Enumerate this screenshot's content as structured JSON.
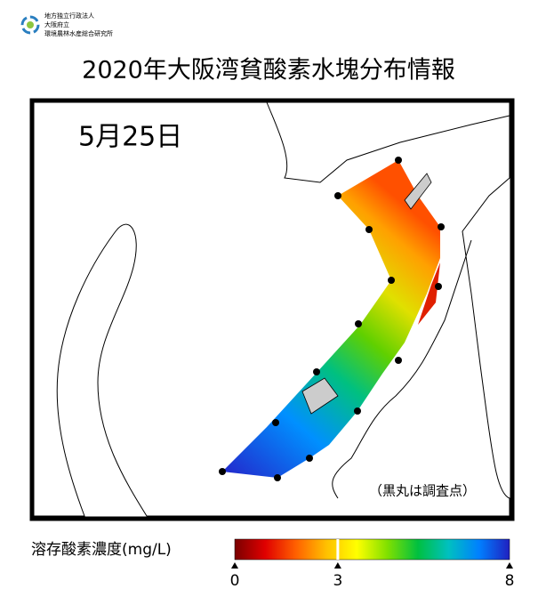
{
  "logo": {
    "lines": [
      "地方独立行政法人",
      "大阪府立",
      "環境農林水産総合研究所"
    ]
  },
  "title": "2020年大阪湾貧酸素水塊分布情報",
  "map": {
    "date": "5月25日",
    "note": "（黒丸は調査点）"
  },
  "colorbar": {
    "label": "溶存酸素濃度(mg/L)",
    "lim": [
      0,
      8
    ],
    "ticks": [
      0,
      3,
      8
    ],
    "colors": [
      "#7a0000",
      "#e00000",
      "#ff6000",
      "#ffc000",
      "#ffff00",
      "#80e000",
      "#00c040",
      "#00c0c0",
      "#0080ff",
      "#2020c0"
    ]
  }
}
